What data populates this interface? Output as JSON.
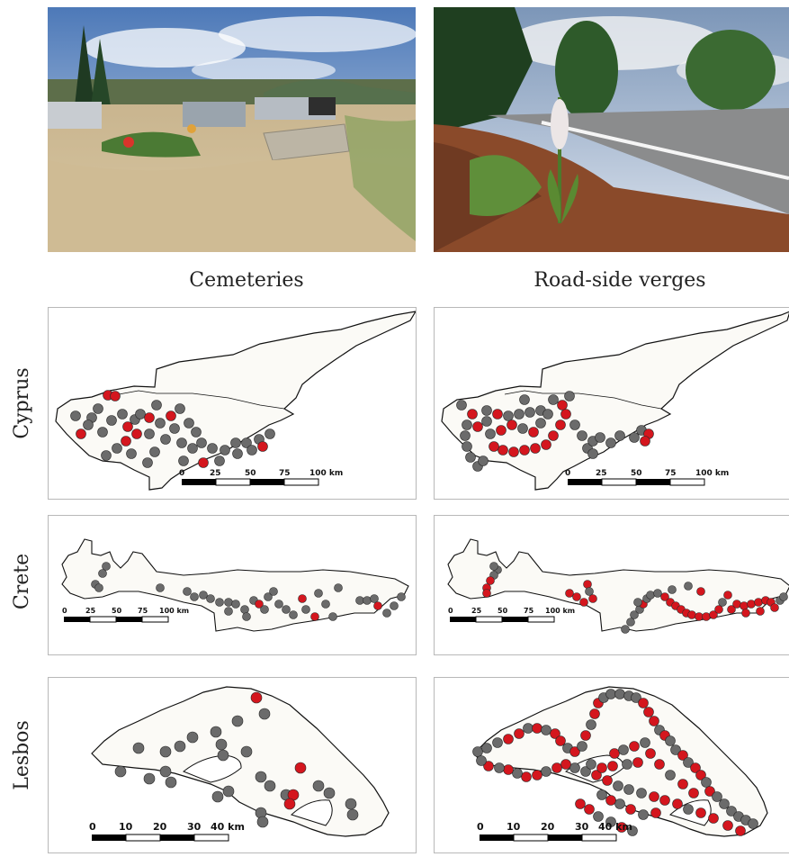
{
  "columns": {
    "left": "Cemeteries",
    "right": "Road-side verges"
  },
  "rows": {
    "cyprus": "Cyprus",
    "crete": "Crete",
    "lesbos": "Lesbos"
  },
  "colors": {
    "site_gray": "#6b6b6b",
    "site_red": "#d4161e",
    "land_fill": "#fbfaf6",
    "outline": "#111111"
  },
  "photos": [
    {
      "label": "cemetery-photo",
      "subject": "cemetery with graves, trees and cloudy sky"
    },
    {
      "label": "roadside-photo",
      "subject": "orchid on road-side verge with pine needles"
    }
  ],
  "scalebars": {
    "cyprus": {
      "ticks": [
        "0",
        "25",
        "50",
        "75",
        "100 km"
      ]
    },
    "crete": {
      "ticks": [
        "0",
        "25",
        "50",
        "75",
        "100 km"
      ]
    },
    "lesbos": {
      "ticks": [
        "0",
        "10",
        "20",
        "30",
        "40 km"
      ]
    }
  }
}
